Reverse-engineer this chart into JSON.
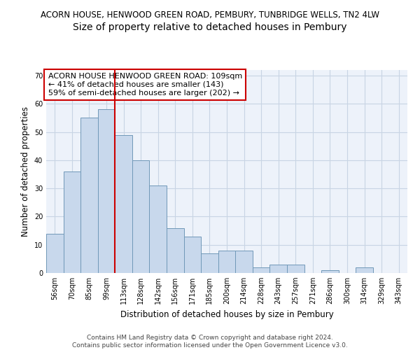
{
  "title1": "ACORN HOUSE, HENWOOD GREEN ROAD, PEMBURY, TUNBRIDGE WELLS, TN2 4LW",
  "title2": "Size of property relative to detached houses in Pembury",
  "xlabel": "Distribution of detached houses by size in Pembury",
  "ylabel": "Number of detached properties",
  "categories": [
    "56sqm",
    "70sqm",
    "85sqm",
    "99sqm",
    "113sqm",
    "128sqm",
    "142sqm",
    "156sqm",
    "171sqm",
    "185sqm",
    "200sqm",
    "214sqm",
    "228sqm",
    "243sqm",
    "257sqm",
    "271sqm",
    "286sqm",
    "300sqm",
    "314sqm",
    "329sqm",
    "343sqm"
  ],
  "values": [
    14,
    36,
    55,
    58,
    49,
    40,
    31,
    16,
    13,
    7,
    8,
    8,
    2,
    3,
    3,
    0,
    1,
    0,
    2,
    0,
    0
  ],
  "bar_color": "#c8d8ec",
  "bar_edge_color": "#7098b8",
  "grid_color": "#c8d4e4",
  "background_color": "#edf2fa",
  "annotation_text": "ACORN HOUSE HENWOOD GREEN ROAD: 109sqm\n← 41% of detached houses are smaller (143)\n59% of semi-detached houses are larger (202) →",
  "annotation_box_color": "#ffffff",
  "annotation_box_edge": "#cc0000",
  "vline_color": "#cc0000",
  "ylim": [
    0,
    72
  ],
  "yticks": [
    0,
    10,
    20,
    30,
    40,
    50,
    60,
    70
  ],
  "footer": "Contains HM Land Registry data © Crown copyright and database right 2024.\nContains public sector information licensed under the Open Government Licence v3.0.",
  "title1_fontsize": 8.5,
  "title2_fontsize": 10,
  "xlabel_fontsize": 8.5,
  "ylabel_fontsize": 8.5,
  "tick_fontsize": 7,
  "annotation_fontsize": 8,
  "footer_fontsize": 6.5
}
